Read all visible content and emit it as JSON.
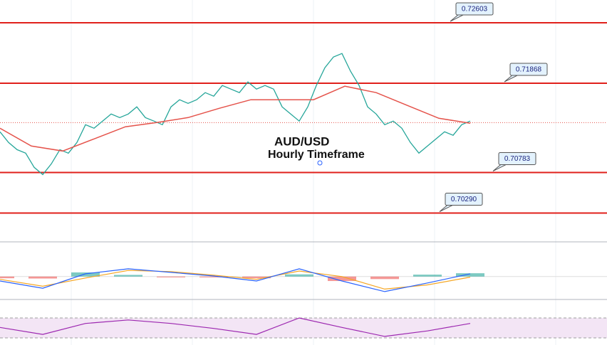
{
  "chart_data": {
    "type": "line",
    "title": "AUD/USD",
    "subtitle": "Hourly Timeframe",
    "ylim": [
      0.6994,
      0.7288
    ],
    "levels": [
      {
        "value": 0.72603,
        "label": "0.72603"
      },
      {
        "value": 0.71868,
        "label": "0.71868"
      },
      {
        "value": 0.70783,
        "label": "0.70783"
      },
      {
        "value": 0.7029,
        "label": "0.70290"
      }
    ],
    "level_color": "#e0201b",
    "current_price": 0.7139,
    "series": [
      {
        "name": "Price",
        "color": "#26a69a",
        "values": [
          0.71278,
          0.71148,
          0.71061,
          0.71018,
          0.70845,
          0.70758,
          0.70888,
          0.71061,
          0.71018,
          0.71148,
          0.71364,
          0.71321,
          0.71408,
          0.71494,
          0.71451,
          0.71494,
          0.71581,
          0.71451,
          0.71408,
          0.71364,
          0.71581,
          0.71668,
          0.71624,
          0.71668,
          0.71754,
          0.71711,
          0.71841,
          0.71797,
          0.71754,
          0.71884,
          0.71797,
          0.71841,
          0.71797,
          0.71581,
          0.71494,
          0.71408,
          0.71581,
          0.71841,
          0.72057,
          0.72187,
          0.7223,
          0.72014,
          0.71841,
          0.71581,
          0.71494,
          0.71364,
          0.71408,
          0.71321,
          0.71148,
          0.71018,
          0.71105,
          0.71191,
          0.71278,
          0.71235,
          0.71364,
          0.71408
        ]
      },
      {
        "name": "MA",
        "color": "#e5534b",
        "values": [
          0.71321,
          0.71105,
          0.71044,
          0.71191,
          0.71339,
          0.7139,
          0.71451,
          0.71564,
          0.71668,
          0.71668,
          0.71668,
          0.71832,
          0.71754,
          0.71598,
          0.71442,
          0.71382
        ]
      }
    ],
    "macd": {
      "ylim": [
        -0.8,
        1.2
      ],
      "line": {
        "color": "#2962ff",
        "values": [
          -0.16,
          -0.42,
          0.1,
          0.28,
          0.15,
          0.02,
          -0.16,
          0.28,
          -0.16,
          -0.54,
          -0.23,
          0.1
        ]
      },
      "signal": {
        "color": "#f5a623",
        "values": [
          -0.1,
          -0.35,
          -0.05,
          0.22,
          0.18,
          0.05,
          -0.1,
          0.2,
          0.0,
          -0.45,
          -0.3,
          -0.02
        ]
      },
      "histogram": {
        "up_color": "#26a69a",
        "down_color": "#ef5350",
        "values": [
          -0.06,
          -0.07,
          0.15,
          0.06,
          -0.03,
          -0.03,
          -0.06,
          0.08,
          -0.16,
          -0.09,
          0.07,
          0.12
        ]
      }
    },
    "rsi": {
      "ylim": [
        20,
        80
      ],
      "bands": [
        30,
        70
      ],
      "color": "#9c27b0",
      "values": [
        51,
        37,
        59,
        66,
        59,
        49,
        37,
        70,
        51,
        33,
        44,
        59
      ]
    }
  }
}
